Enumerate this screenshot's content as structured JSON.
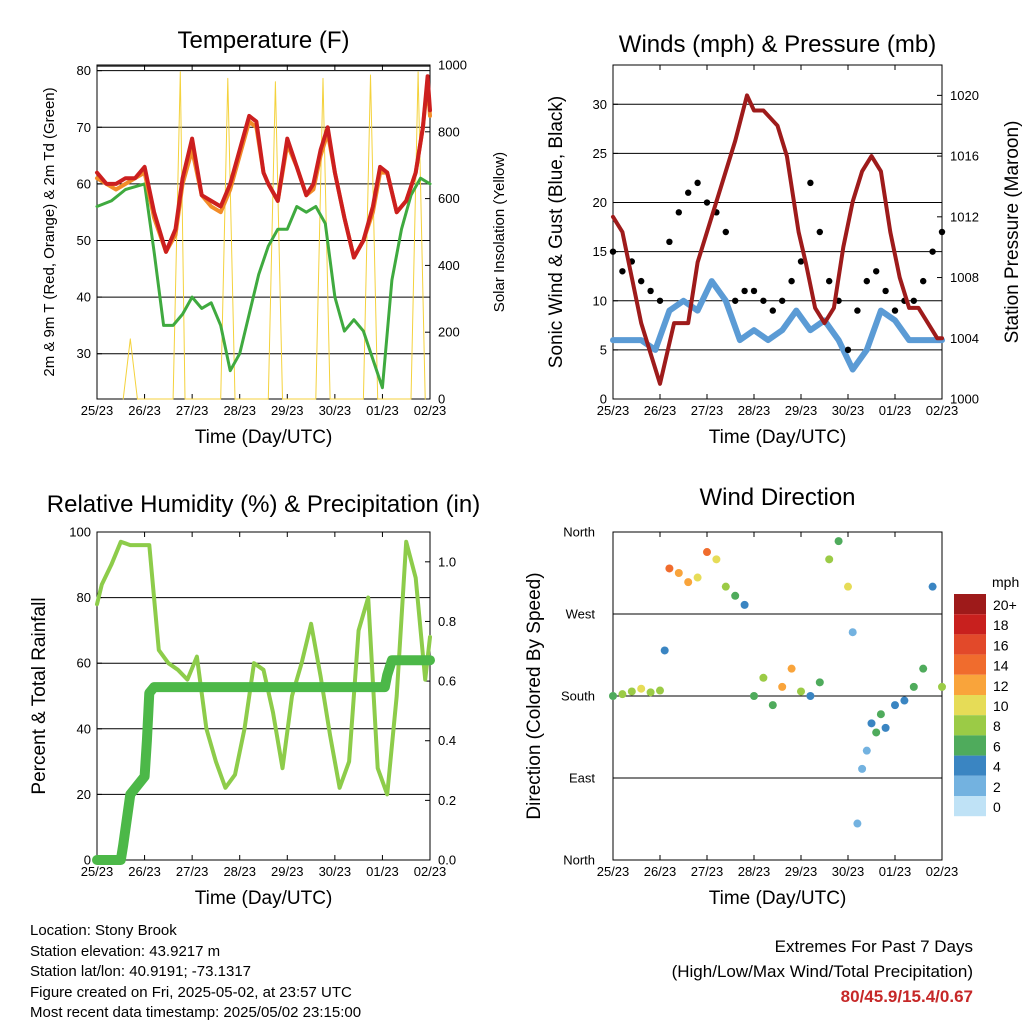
{
  "panels": {
    "temperature": {
      "title": "Temperature (F)"
    },
    "winds": {
      "title": "Winds (mph) & Pressure (mb)"
    },
    "humidity": {
      "title": "Relative Humidity (%) & Precipitation (in)"
    },
    "direction": {
      "title": "Wind Direction"
    }
  },
  "colors": {
    "t2m": "#cc1f1f",
    "t9m": "#f28c28",
    "td": "#3faa3f",
    "solar": "#f4d23c",
    "gust": "#000000",
    "wind": "#5b9bd5",
    "pressure": "#9e1b1b",
    "rh": "#8dcc4a",
    "precip": "#4cb848"
  },
  "speed_legend": {
    "unit": "mph",
    "levels": [
      {
        "label": "20+",
        "color": "#9e1a1a"
      },
      {
        "label": "18",
        "color": "#c8201e"
      },
      {
        "label": "16",
        "color": "#e2492a"
      },
      {
        "label": "14",
        "color": "#f06c2d"
      },
      {
        "label": "12",
        "color": "#f9a43b"
      },
      {
        "label": "10",
        "color": "#e6dc57"
      },
      {
        "label": "8",
        "color": "#9bcb46"
      },
      {
        "label": "6",
        "color": "#4fab5c"
      },
      {
        "label": "4",
        "color": "#3a85c2"
      },
      {
        "label": "2",
        "color": "#73b2e0"
      },
      {
        "label": "0",
        "color": "#bfe2f6"
      }
    ]
  },
  "info": {
    "location": "Location: Stony Brook",
    "elevation": "Station elevation: 43.9217 m",
    "latlon": "Station lat/lon: 40.9191; -73.1317",
    "created": "Figure created on Fri, 2025-05-02, at 23:57 UTC",
    "recent": "Most recent data timestamp: 2025/05/02 23:15:00"
  },
  "extremes": {
    "heading": "Extremes For Past 7 Days",
    "subheading": "(High/Low/Max Wind/Total Precipitation)",
    "values": "80/45.9/15.4/0.67"
  },
  "chart_data": [
    {
      "type": "line",
      "title": "Temperature (F)",
      "xlabel": "Time (Day/UTC)",
      "ylabel": "2m & 9m T (Red, Orange) & 2m Td (Green)",
      "ylabel_right": "Solar Insolation (Yellow)",
      "x_ticks": [
        "25/23",
        "26/23",
        "27/23",
        "28/23",
        "29/23",
        "30/23",
        "01/23",
        "02/23"
      ],
      "xlim": [
        0,
        7
      ],
      "ylim": [
        22,
        81
      ],
      "y_ticks": [
        30,
        40,
        50,
        60,
        70,
        80
      ],
      "ylim_right": [
        0,
        1000
      ],
      "y_ticks_right": [
        0,
        200,
        400,
        600,
        800,
        1000
      ],
      "x_unit": "days since 25/23",
      "series": [
        {
          "name": "2m T",
          "axis": "left",
          "x": [
            0,
            0.2,
            0.4,
            0.6,
            0.8,
            1,
            1.2,
            1.45,
            1.65,
            1.8,
            2,
            2.2,
            2.4,
            2.6,
            2.8,
            3,
            3.2,
            3.35,
            3.5,
            3.6,
            3.8,
            4,
            4.2,
            4.4,
            4.55,
            4.7,
            4.85,
            5,
            5.2,
            5.4,
            5.6,
            5.8,
            5.95,
            6.1,
            6.3,
            6.5,
            6.7,
            6.85,
            6.95,
            7
          ],
          "y": [
            62,
            60,
            60,
            61,
            61,
            63,
            55,
            48,
            52,
            61,
            68,
            58,
            57,
            56,
            60,
            66,
            72,
            71,
            62,
            60,
            57,
            68,
            63,
            58,
            60,
            66,
            70,
            62,
            54,
            47,
            50,
            56,
            63,
            62,
            55,
            57,
            62,
            70,
            79,
            73
          ]
        },
        {
          "name": "9m T",
          "axis": "left",
          "x": [
            0,
            0.2,
            0.4,
            0.6,
            0.8,
            1,
            1.2,
            1.45,
            1.65,
            1.8,
            2,
            2.2,
            2.4,
            2.6,
            2.8,
            3,
            3.2,
            3.35,
            3.5,
            3.6,
            3.8,
            4,
            4.2,
            4.4,
            4.55,
            4.7,
            4.85,
            5,
            5.2,
            5.4,
            5.6,
            5.8,
            5.95,
            6.1,
            6.3,
            6.5,
            6.7,
            6.85,
            6.95,
            7
          ],
          "y": [
            61,
            60,
            59,
            60,
            61,
            62,
            54,
            48,
            51,
            60,
            66,
            58,
            56,
            55,
            59,
            65,
            71,
            70,
            62,
            60,
            57,
            67,
            63,
            58,
            59,
            65,
            69,
            62,
            54,
            47,
            50,
            55,
            62,
            62,
            55,
            57,
            62,
            70,
            78,
            72
          ]
        },
        {
          "name": "2m Td",
          "axis": "left",
          "x": [
            0,
            0.3,
            0.6,
            1,
            1.2,
            1.4,
            1.6,
            1.8,
            2,
            2.2,
            2.4,
            2.6,
            2.8,
            3,
            3.2,
            3.4,
            3.6,
            3.8,
            4,
            4.2,
            4.4,
            4.6,
            4.8,
            5,
            5.2,
            5.4,
            5.6,
            5.8,
            6,
            6.2,
            6.4,
            6.6,
            6.8,
            7
          ],
          "y": [
            56,
            57,
            59,
            60,
            48,
            35,
            35,
            37,
            40,
            38,
            39,
            35,
            27,
            30,
            37,
            44,
            49,
            52,
            52,
            56,
            55,
            56,
            53,
            40,
            34,
            36,
            34,
            29,
            24,
            43,
            52,
            58,
            61,
            60
          ]
        },
        {
          "name": "Solar Insolation",
          "axis": "right",
          "x": [
            0.55,
            0.7,
            0.85,
            1.6,
            1.75,
            1.85,
            2.6,
            2.75,
            2.9,
            3.6,
            3.75,
            3.9,
            4.6,
            4.75,
            4.9,
            5.6,
            5.75,
            5.9,
            6.6,
            6.75,
            6.9
          ],
          "y": [
            0,
            180,
            0,
            0,
            980,
            0,
            0,
            960,
            0,
            0,
            950,
            0,
            0,
            960,
            0,
            0,
            970,
            0,
            0,
            980,
            0
          ]
        }
      ]
    },
    {
      "type": "line",
      "title": "Winds (mph) & Pressure (mb)",
      "xlabel": "Time (Day/UTC)",
      "ylabel": "Sonic Wind & Gust (Blue, Black)",
      "ylabel_right": "Station Pressure (Maroon)",
      "x_ticks": [
        "25/23",
        "26/23",
        "27/23",
        "28/23",
        "29/23",
        "30/23",
        "01/23",
        "02/23"
      ],
      "xlim": [
        0,
        7
      ],
      "ylim": [
        0,
        34
      ],
      "y_ticks": [
        0,
        5,
        10,
        15,
        20,
        25,
        30
      ],
      "ylim_right": [
        1000,
        1022
      ],
      "y_ticks_right": [
        1000,
        1004,
        1008,
        1012,
        1016,
        1020
      ],
      "x_unit": "days since 25/23",
      "series": [
        {
          "name": "Sonic Wind",
          "axis": "left",
          "x": [
            0,
            0.3,
            0.6,
            0.9,
            1.2,
            1.5,
            1.8,
            2.1,
            2.4,
            2.7,
            3,
            3.3,
            3.6,
            3.9,
            4.2,
            4.5,
            4.8,
            5.1,
            5.4,
            5.7,
            6,
            6.3,
            6.6,
            6.9,
            7
          ],
          "y": [
            6,
            6,
            6,
            5,
            9,
            10,
            9,
            12,
            10,
            6,
            7,
            6,
            7,
            9,
            7,
            8,
            6,
            3,
            5,
            9,
            8,
            6,
            6,
            6,
            6
          ]
        },
        {
          "name": "Gust",
          "axis": "left",
          "x": [
            0,
            0.2,
            0.4,
            0.6,
            0.8,
            1,
            1.2,
            1.4,
            1.6,
            1.8,
            2,
            2.2,
            2.4,
            2.6,
            2.8,
            3,
            3.2,
            3.4,
            3.6,
            3.8,
            4,
            4.2,
            4.4,
            4.6,
            4.8,
            5,
            5.2,
            5.4,
            5.6,
            5.8,
            6,
            6.2,
            6.4,
            6.6,
            6.8,
            7
          ],
          "y": [
            15,
            13,
            14,
            12,
            11,
            10,
            16,
            19,
            21,
            22,
            20,
            19,
            17,
            10,
            11,
            11,
            10,
            9,
            10,
            12,
            14,
            22,
            17,
            12,
            10,
            5,
            9,
            12,
            13,
            11,
            9,
            10,
            10,
            12,
            15,
            17
          ]
        },
        {
          "name": "Station Pressure",
          "axis": "right",
          "x": [
            0,
            0.2,
            0.4,
            0.6,
            0.8,
            1,
            1.3,
            1.6,
            1.8,
            2,
            2.3,
            2.6,
            2.85,
            3,
            3.2,
            3.5,
            3.7,
            3.95,
            4.1,
            4.3,
            4.5,
            4.7,
            4.9,
            5.1,
            5.3,
            5.5,
            5.7,
            5.9,
            6.1,
            6.3,
            6.5,
            6.7,
            6.9,
            7
          ],
          "y": [
            1012,
            1011,
            1008,
            1005,
            1003,
            1001,
            1005,
            1005,
            1009,
            1011,
            1014,
            1017,
            1020,
            1019,
            1019,
            1018,
            1016,
            1011,
            1009,
            1006,
            1005,
            1006,
            1010,
            1013,
            1015,
            1016,
            1015,
            1011,
            1008,
            1006,
            1006,
            1005,
            1004,
            1004
          ]
        }
      ]
    },
    {
      "type": "line",
      "title": "Relative Humidity (%) & Precipitation (in)",
      "xlabel": "Time (Day/UTC)",
      "ylabel": "Percent & Total Rainfall",
      "x_ticks": [
        "25/23",
        "26/23",
        "27/23",
        "28/23",
        "29/23",
        "30/23",
        "01/23",
        "02/23"
      ],
      "xlim": [
        0,
        7
      ],
      "ylim": [
        0,
        100
      ],
      "y_ticks": [
        0,
        20,
        40,
        60,
        80,
        100
      ],
      "ylim_right": [
        0,
        1.1
      ],
      "y_ticks_right": [
        0.0,
        0.2,
        0.4,
        0.6,
        0.8,
        1.0
      ],
      "x_unit": "days since 25/23",
      "series": [
        {
          "name": "Relative Humidity",
          "axis": "left",
          "x": [
            0,
            0.1,
            0.3,
            0.5,
            0.7,
            0.9,
            1.1,
            1.3,
            1.5,
            1.7,
            1.9,
            2.1,
            2.3,
            2.5,
            2.7,
            2.9,
            3.1,
            3.3,
            3.5,
            3.7,
            3.9,
            4.1,
            4.3,
            4.5,
            4.7,
            4.9,
            5.1,
            5.3,
            5.5,
            5.7,
            5.9,
            6.1,
            6.3,
            6.5,
            6.7,
            6.9,
            7
          ],
          "y": [
            78,
            84,
            90,
            97,
            96,
            96,
            96,
            64,
            60,
            58,
            55,
            62,
            40,
            30,
            22,
            26,
            40,
            60,
            58,
            45,
            28,
            50,
            60,
            72,
            56,
            38,
            22,
            30,
            70,
            80,
            28,
            20,
            50,
            97,
            86,
            55,
            68
          ]
        },
        {
          "name": "Total Precipitation",
          "axis": "right",
          "x": [
            0,
            0.5,
            0.55,
            0.7,
            0.9,
            1,
            1.05,
            1.1,
            1.2,
            6.05,
            6.1,
            6.2,
            7
          ],
          "y": [
            0,
            0,
            0.05,
            0.22,
            0.26,
            0.28,
            0.4,
            0.56,
            0.58,
            0.58,
            0.62,
            0.67,
            0.67
          ]
        }
      ]
    },
    {
      "type": "scatter",
      "title": "Wind Direction",
      "xlabel": "Time (Day/UTC)",
      "ylabel": "Direction (Colored By Speed)",
      "x_ticks": [
        "25/23",
        "26/23",
        "27/23",
        "28/23",
        "29/23",
        "30/23",
        "01/23",
        "02/23"
      ],
      "xlim": [
        0,
        7
      ],
      "y_categories": [
        "North",
        "East",
        "South",
        "West",
        "North"
      ],
      "ylim": [
        0,
        360
      ],
      "x_unit": "days since 25/23",
      "series": [
        {
          "name": "Direction",
          "x": [
            0,
            0.2,
            0.4,
            0.6,
            0.8,
            1,
            1.1,
            1.2,
            1.4,
            1.6,
            1.8,
            2,
            2.2,
            2.4,
            2.6,
            2.8,
            3,
            3.2,
            3.4,
            3.6,
            3.8,
            4,
            4.2,
            4.4,
            4.6,
            4.8,
            5,
            5.1,
            5.2,
            5.3,
            5.4,
            5.5,
            5.6,
            5.7,
            5.8,
            6,
            6.2,
            6.4,
            6.6,
            6.8,
            7
          ],
          "y": [
            180,
            182,
            185,
            188,
            184,
            186,
            230,
            320,
            315,
            305,
            310,
            338,
            330,
            300,
            290,
            280,
            180,
            200,
            170,
            190,
            210,
            185,
            180,
            195,
            330,
            350,
            300,
            250,
            40,
            100,
            120,
            150,
            140,
            160,
            145,
            170,
            175,
            190,
            210,
            300,
            190
          ],
          "speed": [
            6,
            7,
            8,
            9,
            8,
            7,
            3,
            13,
            12,
            11,
            9,
            14,
            10,
            7,
            6,
            4,
            6,
            8,
            5,
            11,
            12,
            8,
            4,
            5,
            8,
            6,
            9,
            2,
            1,
            1,
            2,
            3,
            6,
            5,
            4,
            3,
            4,
            6,
            5,
            4,
            7
          ]
        }
      ]
    }
  ]
}
